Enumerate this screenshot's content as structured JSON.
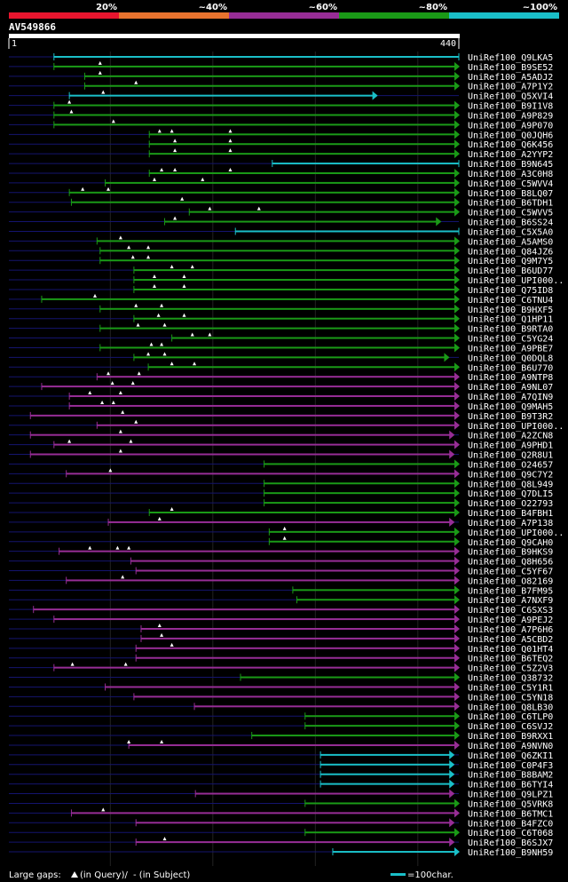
{
  "chart_data": {
    "type": "alignment",
    "title": "AV549866",
    "query_length": 440,
    "axis": {
      "start_label": "1",
      "end_label": "440",
      "range": [
        1,
        440
      ],
      "grid_step": 100
    },
    "identity_legend": [
      {
        "label": "20%",
        "color": "#e8152e"
      },
      {
        "label": "~40%",
        "color": "#e8732e"
      },
      {
        "label": "~60%",
        "color": "#972d96"
      },
      {
        "label": "~80%",
        "color": "#1a9a17"
      },
      {
        "label": "~100%",
        "color": "#1abfc8"
      }
    ],
    "footer": {
      "gaps_prefix": "Large gaps:",
      "query_gap_text": "(in Query)/",
      "subject_gap_text": "- (in Subject)",
      "scale_text": "=100char."
    },
    "hits": [
      {
        "name": "UniRef100_Q9LKA5",
        "color": "cyan",
        "start": 45,
        "end": 440,
        "arrow": "none",
        "gaps": []
      },
      {
        "name": "UniRef100_B9SE52",
        "color": "green",
        "start": 45,
        "end": 440,
        "arrow": "right",
        "gaps": [
          90
        ]
      },
      {
        "name": "UniRef100_A5ADJ2",
        "color": "green",
        "start": 75,
        "end": 440,
        "arrow": "right",
        "gaps": [
          90
        ]
      },
      {
        "name": "UniRef100_A7P1Y2",
        "color": "green",
        "start": 75,
        "end": 440,
        "arrow": "right",
        "gaps": [
          125
        ]
      },
      {
        "name": "UniRef100_Q5XVI4",
        "color": "cyan",
        "start": 60,
        "end": 360,
        "arrow": "right",
        "gaps": [
          93
        ]
      },
      {
        "name": "UniRef100_B9I1V8",
        "color": "green",
        "start": 45,
        "end": 440,
        "arrow": "right",
        "gaps": [
          60
        ]
      },
      {
        "name": "UniRef100_A9P829",
        "color": "green",
        "start": 45,
        "end": 440,
        "arrow": "right",
        "gaps": [
          62
        ]
      },
      {
        "name": "UniRef100_A9P070",
        "color": "green",
        "start": 45,
        "end": 440,
        "arrow": "right",
        "gaps": [
          103
        ]
      },
      {
        "name": "UniRef100_Q0JQH6",
        "color": "green",
        "start": 138,
        "end": 440,
        "arrow": "right",
        "gaps": [
          148,
          160,
          217
        ]
      },
      {
        "name": "UniRef100_Q6K456",
        "color": "green",
        "start": 138,
        "end": 440,
        "arrow": "right",
        "gaps": [
          163,
          217
        ]
      },
      {
        "name": "UniRef100_A2YYP2",
        "color": "green",
        "start": 138,
        "end": 440,
        "arrow": "right",
        "gaps": [
          163,
          217
        ]
      },
      {
        "name": "UniRef100_B9N645",
        "color": "cyan",
        "start": 258,
        "end": 440,
        "arrow": "none",
        "gaps": []
      },
      {
        "name": "UniRef100_A3C0H8",
        "color": "green",
        "start": 138,
        "end": 440,
        "arrow": "right",
        "gaps": [
          150,
          163,
          217
        ]
      },
      {
        "name": "UniRef100_C5WVV4",
        "color": "green",
        "start": 95,
        "end": 440,
        "arrow": "right",
        "gaps": [
          143,
          190
        ]
      },
      {
        "name": "UniRef100_B8LQ07",
        "color": "green",
        "start": 60,
        "end": 440,
        "arrow": "right",
        "gaps": [
          73,
          98
        ]
      },
      {
        "name": "UniRef100_B6TDH1",
        "color": "green",
        "start": 62,
        "end": 440,
        "arrow": "right",
        "gaps": [
          170
        ]
      },
      {
        "name": "UniRef100_C5WVV5",
        "color": "green",
        "start": 177,
        "end": 440,
        "arrow": "right",
        "gaps": [
          197,
          245
        ]
      },
      {
        "name": "UniRef100_B6SS24",
        "color": "green",
        "start": 153,
        "end": 422,
        "arrow": "right",
        "gaps": [
          163
        ]
      },
      {
        "name": "UniRef100_C5X5A0",
        "color": "cyan",
        "start": 222,
        "end": 440,
        "arrow": "none",
        "gaps": []
      },
      {
        "name": "UniRef100_A5AMS0",
        "color": "green",
        "start": 87,
        "end": 440,
        "arrow": "right",
        "gaps": [
          110
        ]
      },
      {
        "name": "UniRef100_Q84JZ6",
        "color": "green",
        "start": 90,
        "end": 440,
        "arrow": "right",
        "gaps": [
          118,
          137
        ]
      },
      {
        "name": "UniRef100_Q9M7Y5",
        "color": "green",
        "start": 90,
        "end": 440,
        "arrow": "right",
        "gaps": [
          122,
          137
        ]
      },
      {
        "name": "UniRef100_B6UD77",
        "color": "green",
        "start": 123,
        "end": 440,
        "arrow": "right",
        "gaps": [
          160,
          180
        ]
      },
      {
        "name": "UniRef100_UPI000..",
        "color": "green",
        "start": 123,
        "end": 440,
        "arrow": "right",
        "gaps": [
          143,
          172
        ]
      },
      {
        "name": "UniRef100_Q75ID8",
        "color": "green",
        "start": 123,
        "end": 440,
        "arrow": "right",
        "gaps": [
          143,
          172
        ]
      },
      {
        "name": "UniRef100_C6TNU4",
        "color": "green",
        "start": 33,
        "end": 440,
        "arrow": "right",
        "gaps": [
          85
        ]
      },
      {
        "name": "UniRef100_B9HXF5",
        "color": "green",
        "start": 90,
        "end": 440,
        "arrow": "right",
        "gaps": [
          125,
          150
        ]
      },
      {
        "name": "UniRef100_Q1HP11",
        "color": "green",
        "start": 123,
        "end": 440,
        "arrow": "right",
        "gaps": [
          147,
          172
        ]
      },
      {
        "name": "UniRef100_B9RTA0",
        "color": "green",
        "start": 90,
        "end": 440,
        "arrow": "right",
        "gaps": [
          127,
          153
        ]
      },
      {
        "name": "UniRef100_C5YG24",
        "color": "green",
        "start": 160,
        "end": 440,
        "arrow": "right",
        "gaps": [
          180,
          197
        ]
      },
      {
        "name": "UniRef100_A9PBE7",
        "color": "green",
        "start": 90,
        "end": 440,
        "arrow": "right",
        "gaps": [
          140,
          150
        ]
      },
      {
        "name": "UniRef100_Q0DQL8",
        "color": "green",
        "start": 123,
        "end": 430,
        "arrow": "right",
        "gaps": [
          137,
          153
        ]
      },
      {
        "name": "UniRef100_B6U770",
        "color": "green",
        "start": 137,
        "end": 440,
        "arrow": "right",
        "gaps": [
          160,
          182
        ]
      },
      {
        "name": "UniRef100_A9NTP8",
        "color": "purple",
        "start": 87,
        "end": 440,
        "arrow": "right",
        "gaps": [
          98,
          128
        ]
      },
      {
        "name": "UniRef100_A9NL07",
        "color": "purple",
        "start": 33,
        "end": 440,
        "arrow": "right",
        "gaps": [
          102,
          122
        ]
      },
      {
        "name": "UniRef100_A7QIN9",
        "color": "purple",
        "start": 60,
        "end": 440,
        "arrow": "right",
        "gaps": [
          80,
          110
        ]
      },
      {
        "name": "UniRef100_Q9MAH5",
        "color": "purple",
        "start": 60,
        "end": 440,
        "arrow": "right",
        "gaps": [
          92,
          103
        ]
      },
      {
        "name": "UniRef100_B9T3R2",
        "color": "purple",
        "start": 22,
        "end": 440,
        "arrow": "right",
        "gaps": [
          112
        ]
      },
      {
        "name": "UniRef100_UPI000..",
        "color": "purple",
        "start": 87,
        "end": 440,
        "arrow": "right",
        "gaps": [
          125
        ]
      },
      {
        "name": "UniRef100_A2ZCN8",
        "color": "purple",
        "start": 22,
        "end": 435,
        "arrow": "right",
        "gaps": [
          110
        ]
      },
      {
        "name": "UniRef100_A9PHD1",
        "color": "purple",
        "start": 45,
        "end": 440,
        "arrow": "right",
        "gaps": [
          60,
          120
        ]
      },
      {
        "name": "UniRef100_Q2R8U1",
        "color": "purple",
        "start": 22,
        "end": 435,
        "arrow": "right",
        "gaps": [
          110
        ]
      },
      {
        "name": "UniRef100_O24657",
        "color": "green",
        "start": 250,
        "end": 440,
        "arrow": "right",
        "gaps": []
      },
      {
        "name": "UniRef100_Q9C7Y2",
        "color": "purple",
        "start": 57,
        "end": 440,
        "arrow": "right",
        "gaps": [
          100
        ]
      },
      {
        "name": "UniRef100_Q8L949",
        "color": "green",
        "start": 250,
        "end": 440,
        "arrow": "right",
        "gaps": []
      },
      {
        "name": "UniRef100_Q7DLI5",
        "color": "green",
        "start": 250,
        "end": 440,
        "arrow": "right",
        "gaps": []
      },
      {
        "name": "UniRef100_O22793",
        "color": "green",
        "start": 250,
        "end": 440,
        "arrow": "right",
        "gaps": []
      },
      {
        "name": "UniRef100_B4FBH1",
        "color": "green",
        "start": 138,
        "end": 440,
        "arrow": "right",
        "gaps": [
          160
        ]
      },
      {
        "name": "UniRef100_A7P138",
        "color": "purple",
        "start": 98,
        "end": 435,
        "arrow": "right",
        "gaps": [
          148
        ]
      },
      {
        "name": "UniRef100_UPI000..",
        "color": "green",
        "start": 255,
        "end": 440,
        "arrow": "right",
        "gaps": [
          270
        ]
      },
      {
        "name": "UniRef100_Q9CAH0",
        "color": "green",
        "start": 255,
        "end": 440,
        "arrow": "right",
        "gaps": [
          270
        ]
      },
      {
        "name": "UniRef100_B9HKS9",
        "color": "purple",
        "start": 50,
        "end": 440,
        "arrow": "right",
        "gaps": [
          80,
          107,
          118
        ]
      },
      {
        "name": "UniRef100_Q8H656",
        "color": "purple",
        "start": 120,
        "end": 440,
        "arrow": "right",
        "gaps": []
      },
      {
        "name": "UniRef100_C5YF67",
        "color": "purple",
        "start": 125,
        "end": 440,
        "arrow": "right",
        "gaps": []
      },
      {
        "name": "UniRef100_O82169",
        "color": "purple",
        "start": 57,
        "end": 440,
        "arrow": "right",
        "gaps": [
          112
        ]
      },
      {
        "name": "UniRef100_B7FM95",
        "color": "green",
        "start": 278,
        "end": 440,
        "arrow": "right",
        "gaps": []
      },
      {
        "name": "UniRef100_A7NXF9",
        "color": "green",
        "start": 282,
        "end": 440,
        "arrow": "right",
        "gaps": []
      },
      {
        "name": "UniRef100_C6SXS3",
        "color": "purple",
        "start": 25,
        "end": 440,
        "arrow": "right",
        "gaps": []
      },
      {
        "name": "UniRef100_A9PEJ2",
        "color": "purple",
        "start": 45,
        "end": 440,
        "arrow": "right",
        "gaps": []
      },
      {
        "name": "UniRef100_A7P6H6",
        "color": "purple",
        "start": 130,
        "end": 440,
        "arrow": "right",
        "gaps": [
          148
        ]
      },
      {
        "name": "UniRef100_A5CBD2",
        "color": "purple",
        "start": 130,
        "end": 440,
        "arrow": "right",
        "gaps": [
          150
        ]
      },
      {
        "name": "UniRef100_Q01HT4",
        "color": "purple",
        "start": 125,
        "end": 440,
        "arrow": "right",
        "gaps": [
          160
        ]
      },
      {
        "name": "UniRef100_B6TEQ2",
        "color": "purple",
        "start": 125,
        "end": 440,
        "arrow": "right",
        "gaps": []
      },
      {
        "name": "UniRef100_C5Z2V3",
        "color": "purple",
        "start": 45,
        "end": 440,
        "arrow": "right",
        "gaps": [
          63,
          115
        ]
      },
      {
        "name": "UniRef100_Q38732",
        "color": "green",
        "start": 227,
        "end": 440,
        "arrow": "right",
        "gaps": []
      },
      {
        "name": "UniRef100_C5Y1R1",
        "color": "purple",
        "start": 95,
        "end": 440,
        "arrow": "right",
        "gaps": []
      },
      {
        "name": "UniRef100_C5YN18",
        "color": "purple",
        "start": 123,
        "end": 440,
        "arrow": "right",
        "gaps": []
      },
      {
        "name": "UniRef100_Q8LB30",
        "color": "purple",
        "start": 182,
        "end": 440,
        "arrow": "right",
        "gaps": []
      },
      {
        "name": "UniRef100_C6TLP0",
        "color": "green",
        "start": 290,
        "end": 440,
        "arrow": "right",
        "gaps": []
      },
      {
        "name": "UniRef100_C6SVJ2",
        "color": "green",
        "start": 290,
        "end": 440,
        "arrow": "right",
        "gaps": []
      },
      {
        "name": "UniRef100_B9RXX1",
        "color": "green",
        "start": 238,
        "end": 440,
        "arrow": "right",
        "gaps": []
      },
      {
        "name": "UniRef100_A9NVN0",
        "color": "purple",
        "start": 118,
        "end": 440,
        "arrow": "right",
        "gaps": [
          118,
          150
        ]
      },
      {
        "name": "UniRef100_Q6ZKI1",
        "color": "cyan",
        "start": 305,
        "end": 435,
        "arrow": "right",
        "gaps": []
      },
      {
        "name": "UniRef100_C0P4F3",
        "color": "cyan",
        "start": 305,
        "end": 435,
        "arrow": "right",
        "gaps": []
      },
      {
        "name": "UniRef100_B8BAM2",
        "color": "cyan",
        "start": 305,
        "end": 435,
        "arrow": "right",
        "gaps": []
      },
      {
        "name": "UniRef100_B6TYI4",
        "color": "cyan",
        "start": 305,
        "end": 435,
        "arrow": "right",
        "gaps": []
      },
      {
        "name": "UniRef100_Q9LPZ1",
        "color": "purple",
        "start": 183,
        "end": 435,
        "arrow": "right",
        "gaps": []
      },
      {
        "name": "UniRef100_Q5VRK8",
        "color": "green",
        "start": 290,
        "end": 440,
        "arrow": "right",
        "gaps": []
      },
      {
        "name": "UniRef100_B6TMC1",
        "color": "purple",
        "start": 62,
        "end": 440,
        "arrow": "right",
        "gaps": [
          93
        ]
      },
      {
        "name": "UniRef100_B4FZC0",
        "color": "purple",
        "start": 125,
        "end": 435,
        "arrow": "right",
        "gaps": []
      },
      {
        "name": "UniRef100_C6T068",
        "color": "green",
        "start": 290,
        "end": 440,
        "arrow": "right",
        "gaps": []
      },
      {
        "name": "UniRef100_B6SJX7",
        "color": "purple",
        "start": 125,
        "end": 435,
        "arrow": "right",
        "gaps": [
          153
        ]
      },
      {
        "name": "UniRef100_B9NH59",
        "color": "cyan",
        "start": 317,
        "end": 440,
        "arrow": "right",
        "gaps": []
      }
    ]
  }
}
